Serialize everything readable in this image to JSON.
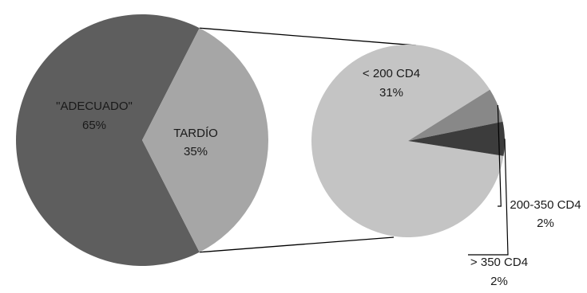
{
  "chart_data": [
    {
      "type": "pie",
      "slices": [
        {
          "label": "\"ADECUADO\"",
          "value_label": "65%",
          "value": 65,
          "color": "#5e5e5e"
        },
        {
          "label": "TARDÍO",
          "value_label": "35%",
          "value": 35,
          "color": "#a6a6a6"
        }
      ]
    },
    {
      "type": "pie",
      "slices": [
        {
          "label": "< 200 CD4",
          "value_label": "31%",
          "value": 31,
          "color": "#c4c4c4"
        },
        {
          "label": "200-350 CD4",
          "value_label": "2%",
          "value": 2,
          "color": "#888888"
        },
        {
          "label": "> 350 CD4",
          "value_label": "2%",
          "value": 2,
          "color": "#3c3c3c"
        }
      ]
    }
  ]
}
